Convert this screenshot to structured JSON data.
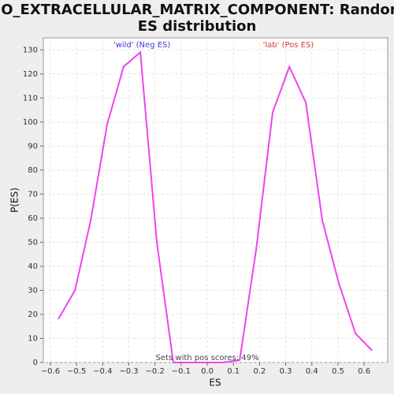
{
  "chart_data": {
    "type": "line",
    "title": [
      "GO_EXTRACELLULAR_MATRIX_COMPONENT: Random",
      "ES distribution"
    ],
    "x_label": "ES",
    "y_label": "P(ES)",
    "x": [
      -0.57,
      -0.506,
      -0.446,
      -0.383,
      -0.32,
      -0.256,
      -0.193,
      -0.13,
      -0.066,
      -0.003,
      0.06,
      0.124,
      0.187,
      0.25,
      0.314,
      0.377,
      0.44,
      0.503,
      0.567,
      0.63
    ],
    "series": [
      {
        "color": "#ee44ee",
        "values": [
          18,
          30,
          59,
          99,
          123,
          129,
          50,
          0,
          0,
          0,
          0,
          1,
          47,
          104,
          123,
          108,
          59,
          33,
          12,
          5
        ]
      }
    ],
    "xlim": [
      -0.627,
      0.69
    ],
    "ylim": [
      0,
      135
    ],
    "xticks": [
      {
        "value": -0.6,
        "label": "−0.6"
      },
      {
        "value": -0.5,
        "label": "−0.5"
      },
      {
        "value": -0.4,
        "label": "−0.4"
      },
      {
        "value": -0.3,
        "label": "−0.3"
      },
      {
        "value": -0.2,
        "label": "−0.2"
      },
      {
        "value": -0.1,
        "label": "−0.1"
      },
      {
        "value": 0,
        "label": "0.0"
      },
      0.1,
      0.2,
      0.3,
      0.4,
      0.5,
      0.6
    ],
    "yticks": [
      0,
      10,
      20,
      30,
      40,
      50,
      60,
      70,
      80,
      90,
      100,
      110,
      120,
      130
    ],
    "grid": true,
    "annotations": [
      {
        "text": "'wild' (Neg ES)",
        "x": -0.25,
        "y": 132,
        "color": "#3b3bd0"
      },
      {
        "text": "'lab' (Pos ES)",
        "x": 0.31,
        "y": 132,
        "color": "#d03b3b"
      },
      {
        "text": "Sets with pos scores: 49%",
        "x": 0,
        "y": 2,
        "color": "#444444"
      }
    ]
  }
}
